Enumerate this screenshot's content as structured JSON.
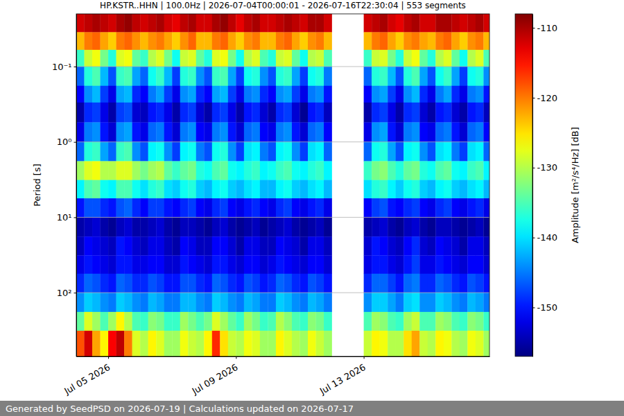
{
  "chart_data": {
    "type": "heatmap",
    "title": "HP.KSTR..HHN | 100.0Hz | 2026-07-04T00:00:01 - 2026-07-16T22:30:04 | 553 segments",
    "ylabel": "Period [s]",
    "footer": "Generated by SeedPSD on 2026-07-19 | Calculations updated on 2026-07-17",
    "log": "y",
    "grid": true,
    "xlim": [
      "2026-07-04T00:00",
      "2026-07-16T22:30"
    ],
    "xticks": [
      {
        "value": "2026-07-05T00:00",
        "label": "Jul 05 2026"
      },
      {
        "value": "2026-07-09T00:00",
        "label": "Jul 09 2026"
      },
      {
        "value": "2026-07-13T00:00",
        "label": "Jul 13 2026"
      }
    ],
    "ylim": [
      0.02,
      700
    ],
    "yticks": [
      {
        "value": 0.1,
        "label": "10⁻¹"
      },
      {
        "value": 1,
        "label": "10⁰"
      },
      {
        "value": 10,
        "label": "10¹"
      },
      {
        "value": 100,
        "label": "10²"
      }
    ],
    "colorbar": {
      "label": "Amplitude [m²/s⁴/Hz] [dB]",
      "lim": [
        -157,
        -108
      ],
      "ticks": [
        -150,
        -140,
        -130,
        -120,
        -110
      ]
    },
    "x_edges": [
      "2026-07-04T00:00",
      "2026-07-04T06:00",
      "2026-07-04T12:00",
      "2026-07-04T18:00",
      "2026-07-05T00:00",
      "2026-07-05T06:00",
      "2026-07-05T12:00",
      "2026-07-05T18:00",
      "2026-07-06T00:00",
      "2026-07-06T06:00",
      "2026-07-06T12:00",
      "2026-07-06T18:00",
      "2026-07-07T00:00",
      "2026-07-07T06:00",
      "2026-07-07T12:00",
      "2026-07-07T18:00",
      "2026-07-08T00:00",
      "2026-07-08T06:00",
      "2026-07-08T12:00",
      "2026-07-08T18:00",
      "2026-07-09T00:00",
      "2026-07-09T06:00",
      "2026-07-09T12:00",
      "2026-07-09T18:00",
      "2026-07-10T00:00",
      "2026-07-10T06:00",
      "2026-07-10T12:00",
      "2026-07-10T18:00",
      "2026-07-11T00:00",
      "2026-07-11T06:00",
      "2026-07-11T12:00",
      "2026-07-11T18:00",
      "2026-07-12T00:00",
      "2026-07-12T06:00",
      "2026-07-12T12:00",
      "2026-07-12T18:00",
      "2026-07-13T00:00",
      "2026-07-13T06:00",
      "2026-07-13T12:00",
      "2026-07-13T18:00",
      "2026-07-14T00:00",
      "2026-07-14T06:00",
      "2026-07-14T12:00",
      "2026-07-14T18:00",
      "2026-07-15T00:00",
      "2026-07-15T06:00",
      "2026-07-15T12:00",
      "2026-07-15T18:00",
      "2026-07-16T00:00",
      "2026-07-16T06:00",
      "2026-07-16T12:00",
      "2026-07-16T18:00",
      "2026-07-17T00:00"
    ],
    "y_edges": [
      0.02,
      0.035,
      0.06,
      0.1,
      0.18,
      0.3,
      0.55,
      1,
      1.8,
      3.2,
      5.6,
      10,
      18,
      32,
      56,
      100,
      180,
      320,
      700
    ],
    "values": [
      [
        -112,
        -111,
        -110,
        -111,
        -112,
        -110,
        -109,
        -111,
        -112,
        -111,
        -110,
        -112,
        -113,
        -111,
        -110,
        -112,
        -112,
        -110,
        -109,
        -111,
        -113,
        -111,
        -110,
        -112,
        -112,
        -111,
        -110,
        -111,
        -112,
        -110,
        -110,
        -112,
        null,
        null,
        null,
        null,
        -112,
        -111,
        -110,
        -112,
        -113,
        -111,
        -110,
        -112,
        -112,
        -110,
        -110,
        -111,
        -112,
        -111,
        -110,
        -112
      ],
      [
        -123,
        -120,
        -119,
        -122,
        -124,
        -120,
        -119,
        -121,
        -123,
        -121,
        -120,
        -122,
        -124,
        -121,
        -119,
        -123,
        -123,
        -120,
        -119,
        -122,
        -124,
        -121,
        -120,
        -123,
        -123,
        -120,
        -119,
        -122,
        -124,
        -121,
        -120,
        -123,
        null,
        null,
        null,
        null,
        -123,
        -120,
        -119,
        -122,
        -124,
        -121,
        -120,
        -122,
        -123,
        -120,
        -119,
        -122,
        -124,
        -121,
        -120,
        -123
      ],
      [
        -136,
        -129,
        -127,
        -133,
        -137,
        -128,
        -127,
        -134,
        -136,
        -130,
        -128,
        -133,
        -138,
        -129,
        -128,
        -134,
        -137,
        -128,
        -127,
        -133,
        -138,
        -130,
        -128,
        -135,
        -137,
        -129,
        -128,
        -134,
        -138,
        -130,
        -129,
        -135,
        null,
        null,
        null,
        null,
        -136,
        -129,
        -128,
        -133,
        -137,
        -129,
        -127,
        -134,
        -137,
        -130,
        -128,
        -134,
        -138,
        -130,
        -128,
        -135
      ],
      [
        -146,
        -137,
        -135,
        -142,
        -147,
        -136,
        -135,
        -143,
        -146,
        -138,
        -136,
        -142,
        -148,
        -137,
        -136,
        -144,
        -147,
        -136,
        -135,
        -143,
        -148,
        -138,
        -137,
        -144,
        -147,
        -137,
        -136,
        -143,
        -148,
        -138,
        -137,
        -145,
        null,
        null,
        null,
        null,
        -146,
        -137,
        -136,
        -142,
        -147,
        -137,
        -135,
        -143,
        -147,
        -138,
        -136,
        -143,
        -148,
        -138,
        -137,
        -144
      ],
      [
        -151,
        -144,
        -142,
        -148,
        -152,
        -143,
        -142,
        -149,
        -151,
        -145,
        -143,
        -148,
        -152,
        -144,
        -143,
        -149,
        -151,
        -143,
        -142,
        -148,
        -152,
        -145,
        -144,
        -149,
        -151,
        -144,
        -143,
        -148,
        -152,
        -145,
        -144,
        -150,
        null,
        null,
        null,
        null,
        -151,
        -144,
        -143,
        -148,
        -152,
        -144,
        -142,
        -149,
        -152,
        -145,
        -143,
        -149,
        -152,
        -145,
        -144,
        -150
      ],
      [
        -155,
        -149,
        -148,
        -152,
        -155,
        -148,
        -147,
        -153,
        -154,
        -150,
        -149,
        -152,
        -155,
        -149,
        -148,
        -153,
        -155,
        -149,
        -148,
        -152,
        -155,
        -150,
        -149,
        -153,
        -155,
        -149,
        -148,
        -153,
        -156,
        -150,
        -149,
        -154,
        null,
        null,
        null,
        null,
        -155,
        -149,
        -148,
        -152,
        -155,
        -149,
        -148,
        -153,
        -155,
        -150,
        -149,
        -153,
        -155,
        -150,
        -149,
        -154
      ],
      [
        -152,
        -145,
        -144,
        -150,
        -153,
        -144,
        -143,
        -150,
        -152,
        -146,
        -145,
        -150,
        -153,
        -145,
        -144,
        -151,
        -152,
        -145,
        -144,
        -150,
        -153,
        -146,
        -145,
        -151,
        -152,
        -145,
        -144,
        -150,
        -153,
        -146,
        -145,
        -151,
        null,
        null,
        null,
        null,
        -152,
        -144,
        -143,
        -150,
        -153,
        -145,
        -144,
        -151,
        -152,
        -146,
        -145,
        -150,
        -153,
        -146,
        -145,
        -151
      ],
      [
        -146,
        -137,
        -136,
        -143,
        -146,
        -136,
        -135,
        -144,
        -147,
        -139,
        -138,
        -144,
        -148,
        -139,
        -138,
        -145,
        -147,
        -138,
        -137,
        -144,
        -148,
        -140,
        -139,
        -145,
        -147,
        -139,
        -138,
        -144,
        -148,
        -140,
        -139,
        -146,
        null,
        null,
        null,
        null,
        -146,
        -138,
        -137,
        -143,
        -147,
        -139,
        -138,
        -144,
        -147,
        -140,
        -139,
        -145,
        -148,
        -140,
        -139,
        -146
      ],
      [
        -131,
        -128,
        -127,
        -130,
        -130,
        -128,
        -128,
        -131,
        -133,
        -131,
        -130,
        -134,
        -136,
        -134,
        -133,
        -137,
        -138,
        -135,
        -134,
        -138,
        -139,
        -137,
        -136,
        -139,
        -138,
        -136,
        -135,
        -138,
        -139,
        -137,
        -136,
        -139,
        null,
        null,
        null,
        null,
        -136,
        -133,
        -132,
        -135,
        -137,
        -134,
        -133,
        -137,
        -138,
        -135,
        -134,
        -138,
        -139,
        -136,
        -135,
        -139
      ],
      [
        -139,
        -135,
        -134,
        -138,
        -139,
        -135,
        -135,
        -138,
        -140,
        -137,
        -136,
        -140,
        -141,
        -138,
        -137,
        -141,
        -142,
        -139,
        -138,
        -141,
        -142,
        -140,
        -139,
        -142,
        -142,
        -139,
        -138,
        -141,
        -142,
        -140,
        -139,
        -142,
        null,
        null,
        null,
        null,
        -140,
        -137,
        -136,
        -139,
        -141,
        -138,
        -137,
        -141,
        -142,
        -139,
        -138,
        -141,
        -142,
        -140,
        -139,
        -142
      ],
      [
        -150,
        -147,
        -147,
        -149,
        -150,
        -147,
        -146,
        -149,
        -151,
        -148,
        -148,
        -150,
        -151,
        -149,
        -148,
        -151,
        -152,
        -149,
        -148,
        -151,
        -152,
        -150,
        -149,
        -151,
        -152,
        -149,
        -148,
        -151,
        -152,
        -150,
        -149,
        -152,
        null,
        null,
        null,
        null,
        -151,
        -148,
        -147,
        -150,
        -151,
        -149,
        -148,
        -151,
        -152,
        -149,
        -148,
        -151,
        -152,
        -150,
        -149,
        -152
      ],
      [
        -155,
        -154,
        -153,
        -155,
        -156,
        -154,
        -153,
        -155,
        -155,
        -154,
        -153,
        -155,
        -156,
        -154,
        -154,
        -155,
        -156,
        -154,
        -153,
        -155,
        -156,
        -155,
        -154,
        -156,
        -155,
        -154,
        -153,
        -155,
        -156,
        -155,
        -154,
        -156,
        null,
        null,
        null,
        null,
        -155,
        -154,
        -153,
        -155,
        -156,
        -154,
        -153,
        -155,
        -156,
        -154,
        -154,
        -155,
        -156,
        -155,
        -154,
        -156
      ],
      [
        -154,
        -151,
        -152,
        -153,
        -154,
        -150,
        -151,
        -153,
        -154,
        -152,
        -152,
        -154,
        -155,
        -151,
        -152,
        -154,
        -154,
        -151,
        -151,
        -153,
        -155,
        -152,
        -152,
        -154,
        -154,
        -151,
        -152,
        -153,
        -155,
        -152,
        -152,
        -154,
        null,
        null,
        null,
        null,
        -153,
        -150,
        -151,
        -153,
        -154,
        -151,
        -149,
        -153,
        -154,
        -151,
        -152,
        -153,
        -155,
        -152,
        -152,
        -154
      ],
      [
        -152,
        -150,
        -151,
        -152,
        -153,
        -150,
        -150,
        -152,
        -152,
        -151,
        -151,
        -153,
        -153,
        -150,
        -151,
        -152,
        -153,
        -150,
        -150,
        -152,
        -153,
        -151,
        -151,
        -153,
        -152,
        -150,
        -151,
        -152,
        -153,
        -151,
        -151,
        -153,
        null,
        null,
        null,
        null,
        -152,
        -150,
        -150,
        -152,
        -153,
        -150,
        -148,
        -152,
        -152,
        -150,
        -151,
        -152,
        -153,
        -151,
        -151,
        -153
      ],
      [
        -149,
        -146,
        -147,
        -149,
        -150,
        -146,
        -147,
        -149,
        -149,
        -147,
        -148,
        -150,
        -150,
        -147,
        -147,
        -149,
        -150,
        -146,
        -147,
        -149,
        -150,
        -147,
        -148,
        -150,
        -149,
        -146,
        -147,
        -149,
        -150,
        -147,
        -148,
        -150,
        null,
        null,
        null,
        null,
        -149,
        -146,
        -146,
        -148,
        -150,
        -146,
        -145,
        -149,
        -149,
        -146,
        -147,
        -149,
        -150,
        -147,
        -148,
        -150
      ],
      [
        -144,
        -141,
        -142,
        -144,
        -145,
        -141,
        -142,
        -144,
        -145,
        -142,
        -143,
        -145,
        -145,
        -142,
        -142,
        -144,
        -145,
        -141,
        -142,
        -144,
        -145,
        -142,
        -143,
        -145,
        -145,
        -141,
        -142,
        -144,
        -145,
        -142,
        -143,
        -145,
        null,
        null,
        null,
        null,
        -144,
        -141,
        -141,
        -143,
        -145,
        -141,
        -140,
        -144,
        -144,
        -141,
        -142,
        -144,
        -145,
        -142,
        -143,
        -145
      ],
      [
        -134,
        -128,
        -131,
        -135,
        -131,
        -126,
        -130,
        -135,
        -136,
        -132,
        -133,
        -136,
        -136,
        -131,
        -133,
        -135,
        -133,
        -128,
        -131,
        -134,
        -136,
        -131,
        -133,
        -136,
        -135,
        -130,
        -132,
        -135,
        -136,
        -132,
        -133,
        -136,
        null,
        null,
        null,
        null,
        -135,
        -131,
        -132,
        -135,
        -136,
        -131,
        -129,
        -135,
        -135,
        -131,
        -132,
        -135,
        -136,
        -132,
        -133,
        -136
      ],
      [
        -118,
        -112,
        -122,
        -126,
        -114,
        -111,
        -120,
        -128,
        -130,
        -126,
        -128,
        -131,
        -131,
        -127,
        -129,
        -130,
        -126,
        -116,
        -125,
        -129,
        -130,
        -127,
        -128,
        -131,
        -131,
        -126,
        -128,
        -130,
        -131,
        -127,
        -129,
        -131,
        null,
        null,
        null,
        null,
        -129,
        -126,
        -127,
        -130,
        -130,
        -125,
        -122,
        -129,
        -130,
        -126,
        -127,
        -130,
        -131,
        -127,
        -128,
        -131
      ]
    ]
  }
}
